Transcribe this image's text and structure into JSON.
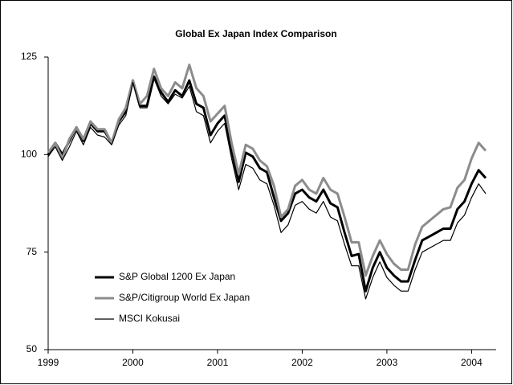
{
  "chart_data": {
    "type": "line",
    "title": "Global Ex Japan Index Comparison",
    "categories": [
      "1999",
      null,
      null,
      null,
      null,
      null,
      null,
      null,
      null,
      null,
      null,
      null,
      "2000",
      null,
      null,
      null,
      null,
      null,
      null,
      null,
      null,
      null,
      null,
      null,
      "2001",
      null,
      null,
      null,
      null,
      null,
      null,
      null,
      null,
      null,
      null,
      null,
      "2002",
      null,
      null,
      null,
      null,
      null,
      null,
      null,
      null,
      null,
      null,
      null,
      "2003",
      null,
      null,
      null,
      null,
      null,
      null,
      null,
      null,
      null,
      null,
      null,
      "2004",
      null,
      null
    ],
    "series": [
      {
        "name": "S&P Global 1200 Ex Japan",
        "color": "#000000",
        "width": 3,
        "values": [
          100,
          103,
          100,
          103.5,
          107,
          103.5,
          108,
          106,
          106,
          103,
          108.5,
          111,
          119,
          112.5,
          112.5,
          120,
          116,
          113.5,
          116.5,
          115,
          119,
          113,
          112,
          105,
          108,
          110,
          101,
          93,
          100.5,
          99.5,
          96.5,
          95.5,
          89,
          83,
          85,
          90,
          91,
          89,
          88,
          91,
          87.5,
          86.5,
          80,
          74,
          74.5,
          65,
          71,
          75,
          71,
          69,
          67.5,
          67.5,
          73,
          78,
          79,
          80,
          81,
          81,
          86,
          88,
          92.5,
          96,
          94
        ]
      },
      {
        "name": "S&P/Citigroup World Ex Japan",
        "color": "#8c8c8c",
        "width": 3,
        "values": [
          100.5,
          103,
          99,
          104,
          107,
          104,
          108.5,
          106.5,
          106.5,
          103,
          109,
          112,
          119,
          113,
          115,
          122,
          117,
          115,
          118.5,
          117,
          123,
          117,
          115,
          108.5,
          110.5,
          112.5,
          103,
          95,
          102.5,
          101.5,
          98.5,
          97,
          92,
          84,
          86,
          92,
          93.5,
          91,
          90,
          94,
          91,
          90,
          84,
          77.5,
          77.5,
          69,
          74,
          78,
          74.5,
          72,
          70.5,
          70.5,
          77,
          81.5,
          83,
          84.5,
          86,
          86.5,
          91.5,
          93.5,
          99,
          103,
          101
        ]
      },
      {
        "name": "MSCI Kokusai",
        "color": "#000000",
        "width": 1.2,
        "values": [
          99.5,
          102,
          98.5,
          102,
          106,
          102.5,
          107,
          105,
          104.5,
          102.5,
          107.5,
          110,
          118.5,
          112,
          112,
          119.5,
          115,
          113,
          115.5,
          114.5,
          117.5,
          111,
          110,
          103,
          106,
          108,
          99,
          91,
          97.5,
          96.5,
          93.5,
          92.5,
          87,
          80,
          82,
          87,
          88,
          86,
          85,
          88,
          84,
          83,
          77,
          71.5,
          71.5,
          63,
          68.5,
          72.5,
          68.5,
          66.5,
          65,
          65,
          70.5,
          75,
          76,
          77,
          78,
          78,
          82.5,
          84.5,
          89,
          92.5,
          90
        ]
      }
    ],
    "ylim": [
      50,
      125
    ],
    "yticks": [
      50,
      75,
      100,
      125
    ],
    "grid": false,
    "legend": "lower left"
  }
}
